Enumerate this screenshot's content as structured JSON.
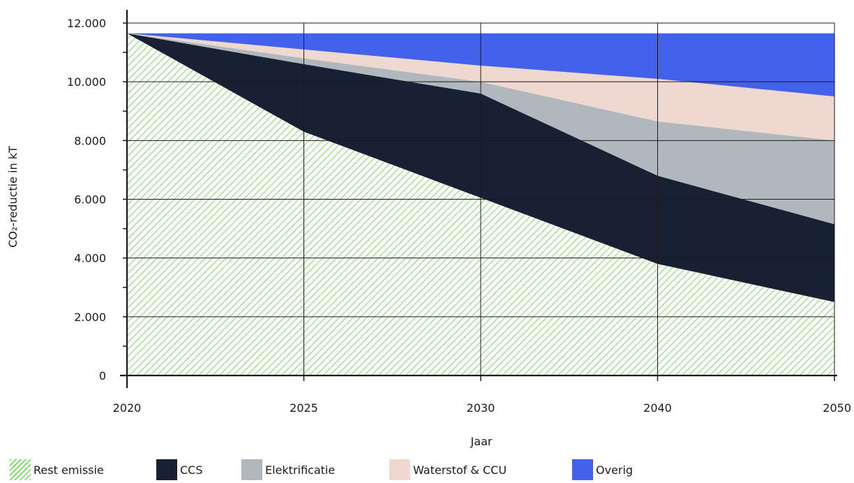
{
  "chart_data": {
    "type": "area",
    "stacked": true,
    "xlabel": "Jaar",
    "ylabel": "CO₂-reductie in kT",
    "categories": [
      "2020",
      "2025",
      "2030",
      "2040",
      "2050"
    ],
    "ylim": [
      0,
      12000
    ],
    "yticks": [
      0,
      2000,
      4000,
      6000,
      8000,
      10000,
      12000
    ],
    "ytick_labels": [
      "0",
      "2.000",
      "4.000",
      "6.000",
      "8.000",
      "10.000",
      "12.000"
    ],
    "grid": true,
    "legend_position": "bottom-left",
    "series": [
      {
        "name": "Rest emissie",
        "color": "#7fe06a",
        "pattern": "hatch",
        "values": [
          11650,
          8300,
          6050,
          3800,
          2500
        ]
      },
      {
        "name": "CCS",
        "color": "#172133",
        "values": [
          0,
          2300,
          3550,
          3000,
          2650
        ]
      },
      {
        "name": "Elektrificatie",
        "color": "#b1b8bd",
        "values": [
          0,
          200,
          400,
          1850,
          2850
        ]
      },
      {
        "name": "Waterstof & CCU",
        "color": "#efd8cf",
        "values": [
          0,
          300,
          550,
          1450,
          1500
        ]
      },
      {
        "name": "Overig",
        "color": "#4262eb",
        "values": [
          0,
          550,
          1100,
          1550,
          2150
        ]
      }
    ]
  }
}
